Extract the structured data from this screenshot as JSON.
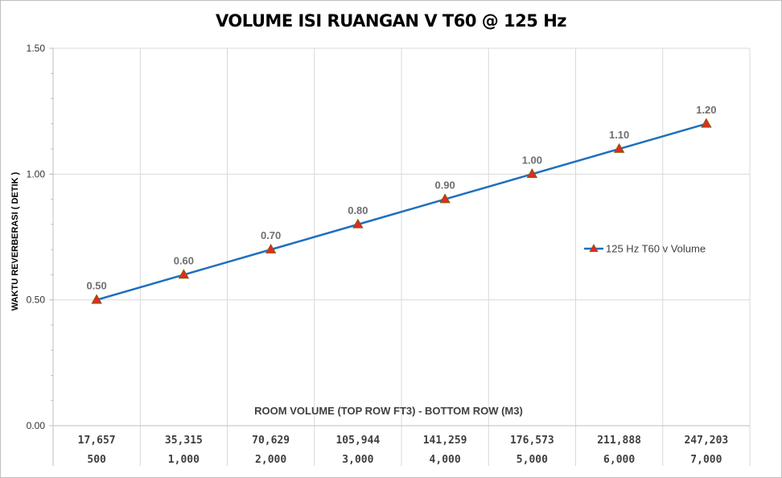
{
  "chart_data": {
    "type": "line",
    "title": "VOLUME ISI RUANGAN V T60 @ 125 Hz",
    "xlabel": "ROOM VOLUME (TOP ROW FT3) - BOTTOM ROW (M3)",
    "ylabel": "WAKTU REVERBERASI ( DETIK )",
    "categories_top": [
      "17,657",
      "35,315",
      "70,629",
      "105,944",
      "141,259",
      "176,573",
      "211,888",
      "247,203"
    ],
    "categories_bottom": [
      "500",
      "1,000",
      "2,000",
      "3,000",
      "4,000",
      "5,000",
      "6,000",
      "7,000"
    ],
    "ylim": [
      0,
      1.5
    ],
    "yticks": [
      "0.00",
      "0.50",
      "1.00",
      "1.50"
    ],
    "grid": true,
    "legend_position": "right",
    "series": [
      {
        "name": "125 Hz T60 v Volume",
        "values": [
          0.5,
          0.6,
          0.7,
          0.8,
          0.9,
          1.0,
          1.1,
          1.2
        ],
        "labels": [
          "0.50",
          "0.60",
          "0.70",
          "0.80",
          "0.90",
          "1.00",
          "1.10",
          "1.20"
        ],
        "line_color": "#1f6fbf",
        "marker": "triangle",
        "marker_fill": "#e8262a",
        "marker_edge": "#8a5a00"
      }
    ]
  }
}
